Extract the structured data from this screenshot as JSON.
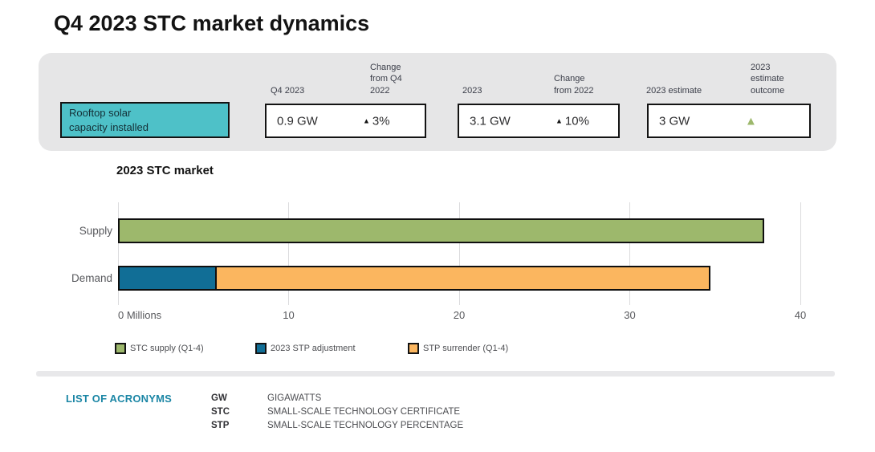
{
  "title": "Q4 2023 STC market dynamics",
  "colors": {
    "teal_label": "#4EC1C8",
    "panel_gray": "#E6E6E7",
    "positive_green": "#9DB86C",
    "accent_teal": "#1B86A5",
    "box_border": "#131313"
  },
  "summary_panel": {
    "row_label": "Rooftop solar\ncapacity installed",
    "col_headers": [
      "Q4 2023",
      "Change\nfrom Q4\n2022",
      "2023",
      "Change\nfrom 2022",
      "2023 estimate",
      "2023\nestimate\noutcome"
    ],
    "up_arrow": "▲",
    "cells": [
      {
        "value": "0.9 GW",
        "change": "3%",
        "direction": "up"
      },
      {
        "value": "3.1 GW",
        "change": "10%",
        "direction": "up"
      },
      {
        "value": "3 GW",
        "change": "",
        "direction": "up"
      }
    ]
  },
  "chart_data": {
    "type": "bar",
    "orientation": "horizontal",
    "stacked": true,
    "title": "2023 STC market",
    "categories": [
      "Supply",
      "Demand"
    ],
    "series": [
      {
        "name": "STC supply (Q1-4)",
        "color": "#9DB86C",
        "values": [
          37.9,
          0
        ]
      },
      {
        "name": "2023 STP adjustment",
        "color": "#116E96",
        "values": [
          0,
          5.8
        ]
      },
      {
        "name": "STP surrender (Q1-4)",
        "color": "#FBB65F",
        "values": [
          0,
          29
        ]
      }
    ],
    "x_ticks": [
      0,
      10,
      20,
      30,
      40
    ],
    "x_unit": "Millions",
    "xlim": [
      0,
      40
    ],
    "grid": true,
    "legend_position": "bottom"
  },
  "acronyms": {
    "heading": "LIST OF ACRONYMS",
    "items": [
      {
        "abbr": "GW",
        "definition": "GIGAWATTS"
      },
      {
        "abbr": "STC",
        "definition": "SMALL-SCALE TECHNOLOGY CERTIFICATE"
      },
      {
        "abbr": "STP",
        "definition": "SMALL-SCALE TECHNOLOGY PERCENTAGE"
      }
    ]
  }
}
